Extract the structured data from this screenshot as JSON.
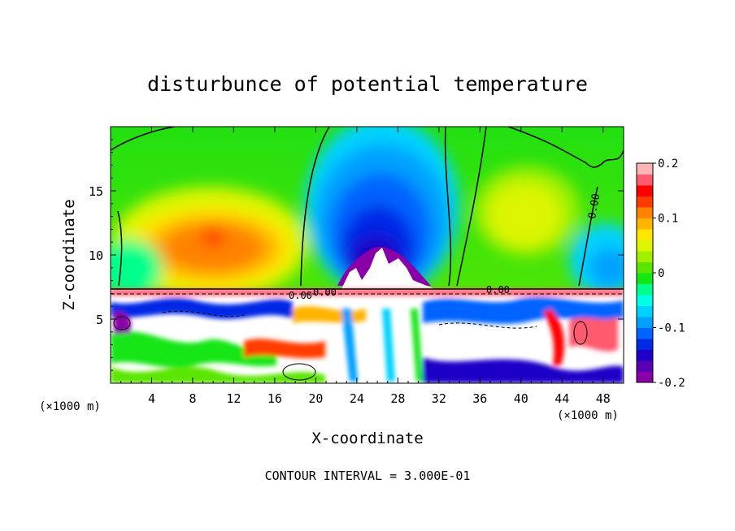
{
  "chart_data": {
    "type": "heatmap",
    "title": "disturbunce of potential temperature",
    "xlabel": "X-coordinate",
    "ylabel": "Z-coordinate",
    "x_unit": "(×1000 m)",
    "z_unit": "(×1000 m)",
    "xlim": [
      0,
      50
    ],
    "ylim": [
      0,
      20
    ],
    "x_ticks": [
      4,
      8,
      12,
      16,
      20,
      24,
      28,
      32,
      36,
      40,
      44,
      48
    ],
    "y_ticks": [
      5,
      10,
      15
    ],
    "colorbar": {
      "range": [
        -0.2,
        0.2
      ],
      "tick_values": [
        0.2,
        0.1,
        0,
        -0.1,
        -0.2
      ],
      "tick_labels": [
        "0.2",
        "0.1",
        "0",
        "-0.1",
        "-0.2"
      ],
      "colors": [
        "#8a00a8",
        "#5a00b4",
        "#1e00c8",
        "#0028e6",
        "#0064ff",
        "#00a0ff",
        "#00d2ff",
        "#00ffe6",
        "#00ff8c",
        "#14e614",
        "#5ae600",
        "#a0f000",
        "#dcf500",
        "#ffe600",
        "#ffb400",
        "#ff8200",
        "#ff3c00",
        "#ff0000",
        "#ff5a6e",
        "#ffb4b4"
      ]
    },
    "contour_labels": [
      "0.00",
      "0.00",
      "0.00",
      "0.00"
    ],
    "contour_interval_label": "CONTOUR INTERVAL = 3.000E-01"
  }
}
